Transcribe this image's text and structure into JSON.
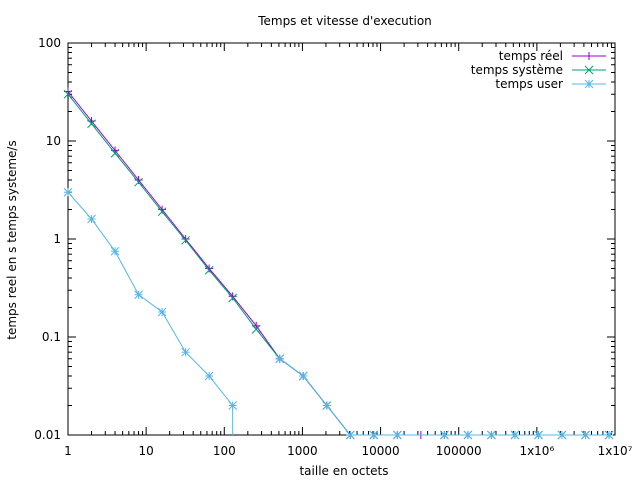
{
  "chart_data": {
    "type": "line",
    "title": "Temps et vitesse d'execution",
    "xlabel": "taille en octets",
    "ylabel": "temps reel en s temps systeme/s",
    "x_scale": "log",
    "y_scale": "log",
    "xlim": [
      1,
      10000000
    ],
    "ylim": [
      0.01,
      100
    ],
    "x_ticks": [
      {
        "value": 1,
        "label": "1"
      },
      {
        "value": 10,
        "label": "10"
      },
      {
        "value": 100,
        "label": "100"
      },
      {
        "value": 1000,
        "label": "1000"
      },
      {
        "value": 10000,
        "label": "10000"
      },
      {
        "value": 100000,
        "label": "100000"
      },
      {
        "value": 1000000,
        "label": "1x10⁶"
      },
      {
        "value": 10000000,
        "label": "1x10⁷"
      }
    ],
    "y_ticks": [
      {
        "value": 0.01,
        "label": "0.01"
      },
      {
        "value": 0.1,
        "label": "0.1"
      },
      {
        "value": 1,
        "label": "1"
      },
      {
        "value": 10,
        "label": "10"
      },
      {
        "value": 100,
        "label": "100"
      }
    ],
    "legend_position": "top-right",
    "grid": false,
    "series": [
      {
        "name": "temps réel",
        "color": "#9400d3",
        "marker": "plus",
        "points": [
          [
            1,
            32
          ],
          [
            2,
            16
          ],
          [
            4,
            8
          ],
          [
            8,
            4
          ],
          [
            16,
            2
          ],
          [
            32,
            1
          ],
          [
            64,
            0.5
          ],
          [
            128,
            0.26
          ],
          [
            256,
            0.13
          ],
          [
            512,
            0.06
          ],
          [
            1024,
            0.04
          ],
          [
            2048,
            0.02
          ],
          [
            4096,
            0.01
          ],
          [
            8192,
            0.01
          ],
          [
            16384,
            0.01
          ],
          [
            32768,
            0.01
          ],
          [
            65536,
            0.01
          ],
          [
            131072,
            0.01
          ],
          [
            262144,
            0.01
          ],
          [
            524288,
            0.01
          ],
          [
            1048576,
            0.01
          ],
          [
            2097152,
            0.01
          ],
          [
            4194304,
            0.01
          ],
          [
            8388608,
            0.01
          ]
        ]
      },
      {
        "name": "temps système",
        "color": "#009e73",
        "marker": "cross",
        "points": [
          [
            1,
            30
          ],
          [
            2,
            15
          ],
          [
            4,
            7.5
          ],
          [
            8,
            3.8
          ],
          [
            16,
            1.9
          ],
          [
            32,
            0.97
          ],
          [
            64,
            0.48
          ],
          [
            128,
            0.25
          ],
          [
            256,
            0.12
          ],
          [
            512,
            0.06
          ],
          [
            1024,
            0.04
          ],
          [
            2048,
            0.02
          ],
          [
            4096,
            0.01
          ],
          [
            8192,
            0.01
          ],
          [
            16384,
            0.01
          ],
          [
            65536,
            0.01
          ],
          [
            131072,
            0.01
          ],
          [
            262144,
            0.01
          ],
          [
            524288,
            0.01
          ],
          [
            1048576,
            0.01
          ],
          [
            2097152,
            0.01
          ],
          [
            4194304,
            0.01
          ],
          [
            8388608,
            0.01
          ]
        ]
      },
      {
        "name": "temps user",
        "color": "#56b4e9",
        "marker": "star",
        "points": [
          [
            1,
            3
          ],
          [
            2,
            1.6
          ],
          [
            4,
            0.75
          ],
          [
            8,
            0.27
          ],
          [
            16,
            0.18
          ],
          [
            32,
            0.07
          ],
          [
            64,
            0.04
          ],
          [
            128,
            0.02
          ],
          [
            512,
            0.06
          ],
          [
            1024,
            0.04
          ],
          [
            2048,
            0.02
          ],
          [
            4096,
            0.01
          ],
          [
            8192,
            0.01
          ],
          [
            16384,
            0.01
          ],
          [
            65536,
            0.01
          ],
          [
            131072,
            0.01
          ],
          [
            262144,
            0.01
          ],
          [
            524288,
            0.01
          ],
          [
            1048576,
            0.01
          ],
          [
            2097152,
            0.01
          ],
          [
            4194304,
            0.01
          ],
          [
            8388608,
            0.01
          ]
        ],
        "drop_to_axis_after": 128
      }
    ]
  }
}
